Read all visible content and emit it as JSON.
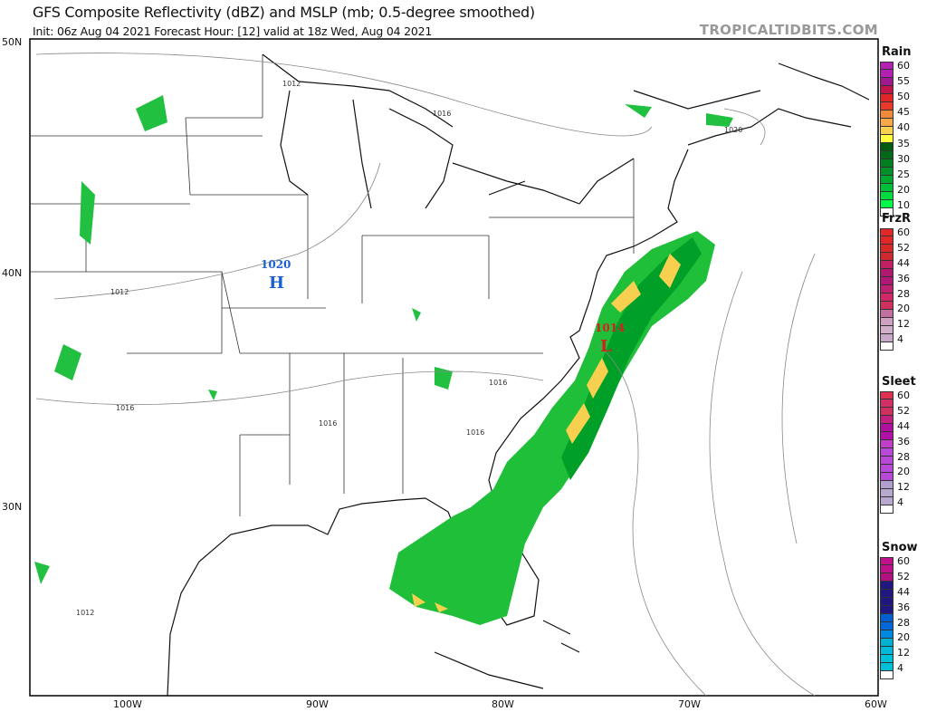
{
  "header": {
    "title": "GFS Composite Reflectivity (dBZ) and MSLP (mb; 0.5-degree smoothed)",
    "subtitle": "Init: 06z Aug 04 2021   Forecast Hour: [12]   valid at 18z Wed, Aug 04 2021",
    "brand": "TROPICALTIDBITS.COM"
  },
  "map": {
    "lat_labels": [
      "50N",
      "40N",
      "30N"
    ],
    "lon_labels": [
      "100W",
      "90W",
      "80W",
      "70W",
      "60W"
    ],
    "high": {
      "label": "H",
      "pressure": "1020",
      "color": "#1a5fd0"
    },
    "low": {
      "label": "L",
      "pressure": "1014",
      "color": "#d62020"
    },
    "isobar_labels": [
      "1012",
      "1016",
      "1016",
      "1020",
      "1012",
      "1016",
      "1016",
      "1016",
      "1012"
    ]
  },
  "legends": [
    {
      "name": "Rain",
      "ticks": [
        "60",
        "55",
        "50",
        "45",
        "40",
        "35",
        "30",
        "25",
        "20",
        "10"
      ],
      "colors": [
        "#b41fb4",
        "#b41fb4",
        "#a01890",
        "#c0144a",
        "#e0262a",
        "#e83a2a",
        "#f08a3a",
        "#f8a848",
        "#f8d050",
        "#ffff40",
        "#005a10",
        "#006a18",
        "#007e20",
        "#009028",
        "#00a830",
        "#00c038",
        "#00dc40",
        "#00f848",
        "#ffffff"
      ]
    },
    {
      "name": "FrzR",
      "ticks": [
        "60",
        "52",
        "44",
        "36",
        "28",
        "20",
        "12",
        "4"
      ],
      "colors": [
        "#e02828",
        "#e02828",
        "#d82828",
        "#d02830",
        "#c02060",
        "#b01870",
        "#b01878",
        "#c02070",
        "#d02868",
        "#d03060",
        "#c070a0",
        "#d0a0c0",
        "#d0b0c8",
        "#c8a8c8",
        "#ffffff"
      ]
    },
    {
      "name": "Sleet",
      "ticks": [
        "60",
        "52",
        "44",
        "36",
        "28",
        "20",
        "12",
        "4"
      ],
      "colors": [
        "#e03050",
        "#d03068",
        "#d03060",
        "#c02080",
        "#b010a0",
        "#b010a8",
        "#c040c8",
        "#b848d8",
        "#b848d8",
        "#b848d8",
        "#b848d8",
        "#b0a0d0",
        "#b8a8d0",
        "#b8a8d0",
        "#ffffff"
      ]
    },
    {
      "name": "Snow",
      "ticks": [
        "60",
        "52",
        "44",
        "36",
        "28",
        "20",
        "12",
        "4"
      ],
      "colors": [
        "#c0108a",
        "#c0108a",
        "#b01080",
        "#201880",
        "#201880",
        "#201880",
        "#201880",
        "#0060d0",
        "#0068d8",
        "#0088e0",
        "#00b0d0",
        "#00b8d8",
        "#00c0d8",
        "#00c0d8",
        "#ffffff"
      ]
    }
  ]
}
